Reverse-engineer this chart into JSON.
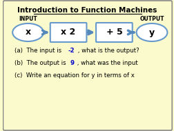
{
  "title": "Introduction to Function Machines",
  "bg_color": "#FAFACC",
  "border_color": "#888888",
  "input_label": "INPUT",
  "output_label": "OUTPUT",
  "ellipse_x_label": "x",
  "ellipse_y_label": "y",
  "box1_label": "x 2",
  "box2_label": "+ 5",
  "ellipse_color": "#FFFFFF",
  "ellipse_edge_color": "#6699CC",
  "box_color": "#FFFFFF",
  "box_edge_color": "#6699CC",
  "arrow_color": "#5588BB",
  "text_color": "#000000",
  "bold_color": "#0000CC",
  "font_size_title": 7.5,
  "font_size_labels": 5.5,
  "font_size_boxes": 9,
  "font_size_text": 6.2,
  "line_a_pre": "(a)  The input is  ",
  "line_a_bold": "-2",
  "line_a_post": " , what is the output?",
  "line_b_pre": "(b)  The output is  ",
  "line_b_bold": "9",
  "line_b_post": " , what was the input",
  "line_c": "(c)  Write an equation for y in terms of x"
}
